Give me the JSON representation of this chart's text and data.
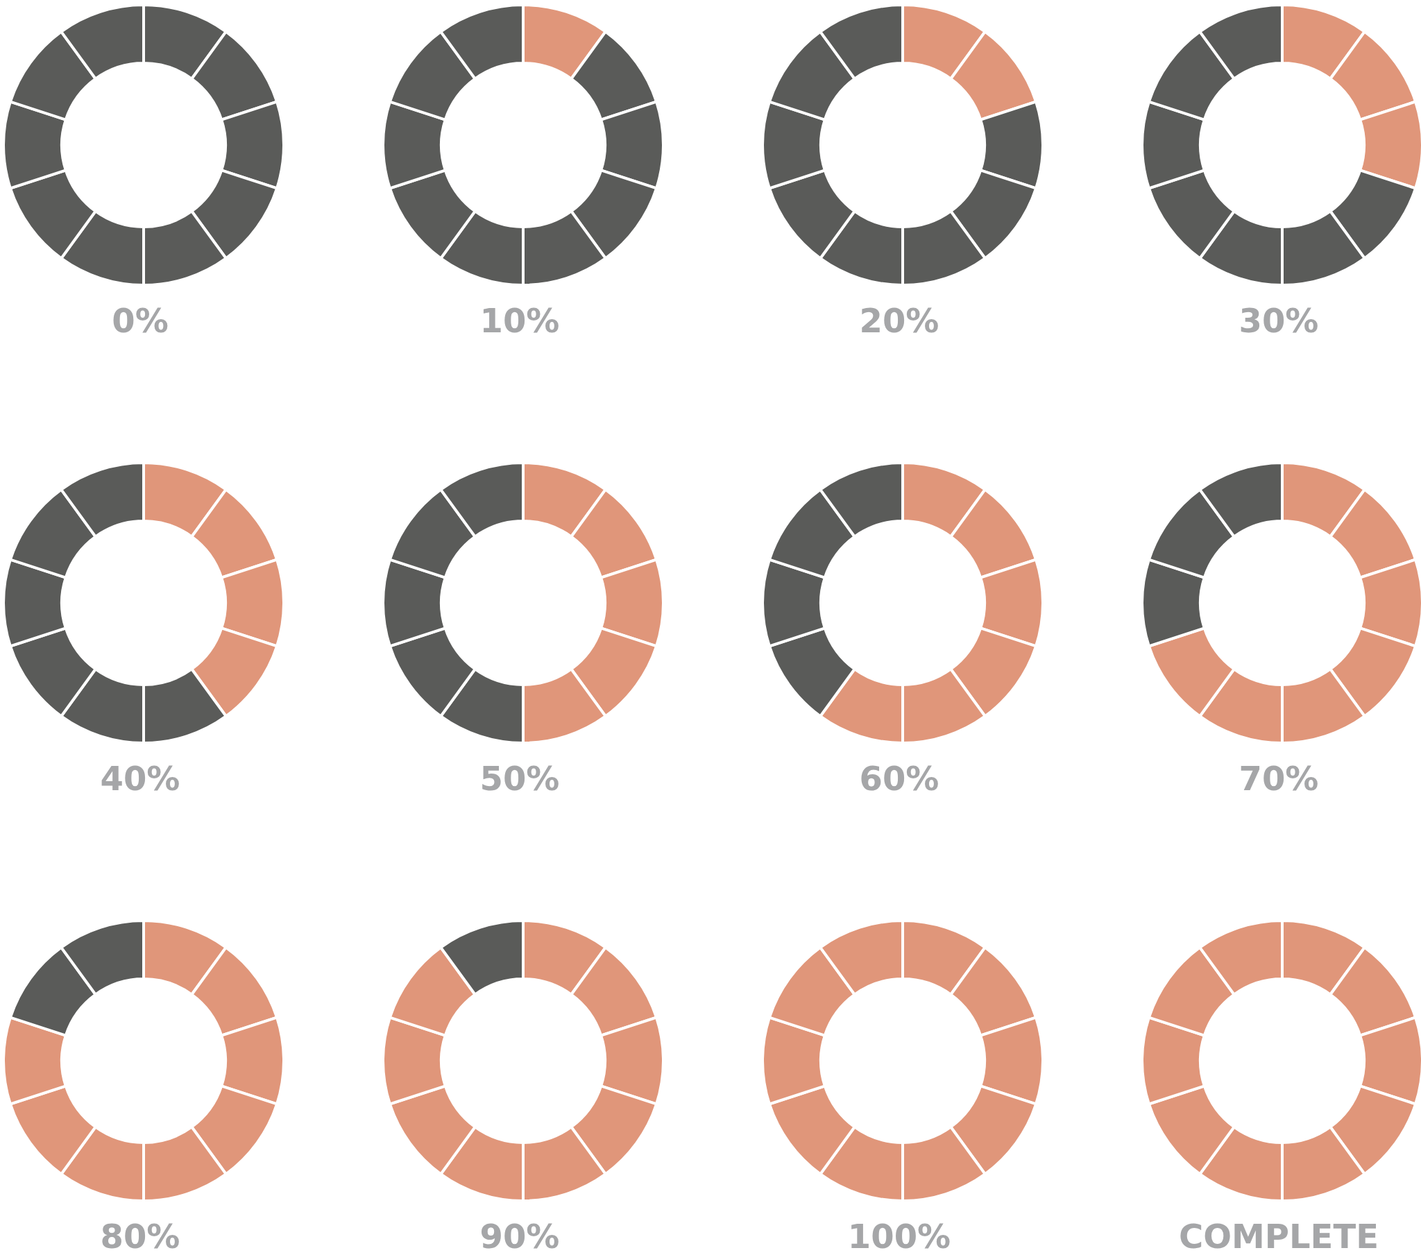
{
  "chart_data": [
    {
      "type": "donut",
      "title": "0%",
      "categories": [
        null,
        null,
        null,
        null,
        null,
        null,
        null,
        null,
        null,
        null
      ],
      "values": [
        10,
        10,
        10,
        10,
        10,
        10,
        10,
        10,
        10,
        10
      ],
      "colors": [
        "#5a5b59",
        "#5a5b59",
        "#5a5b59",
        "#5a5b59",
        "#5a5b59",
        "#5a5b59",
        "#5a5b59",
        "#5a5b59",
        "#5a5b59",
        "#5a5b59"
      ]
    },
    {
      "type": "donut",
      "title": "10%",
      "categories": [
        null,
        null,
        null,
        null,
        null,
        null,
        null,
        null,
        null,
        null
      ],
      "values": [
        10,
        10,
        10,
        10,
        10,
        10,
        10,
        10,
        10,
        10
      ],
      "colors": [
        "#e0967a",
        "#5a5b59",
        "#5a5b59",
        "#5a5b59",
        "#5a5b59",
        "#5a5b59",
        "#5a5b59",
        "#5a5b59",
        "#5a5b59",
        "#5a5b59"
      ]
    },
    {
      "type": "donut",
      "title": "20%",
      "categories": [
        null,
        null,
        null,
        null,
        null,
        null,
        null,
        null,
        null,
        null
      ],
      "values": [
        10,
        10,
        10,
        10,
        10,
        10,
        10,
        10,
        10,
        10
      ],
      "colors": [
        "#e0967a",
        "#e0967a",
        "#5a5b59",
        "#5a5b59",
        "#5a5b59",
        "#5a5b59",
        "#5a5b59",
        "#5a5b59",
        "#5a5b59",
        "#5a5b59"
      ]
    },
    {
      "type": "donut",
      "title": "30%",
      "categories": [
        null,
        null,
        null,
        null,
        null,
        null,
        null,
        null,
        null,
        null
      ],
      "values": [
        10,
        10,
        10,
        10,
        10,
        10,
        10,
        10,
        10,
        10
      ],
      "colors": [
        "#e0967a",
        "#e0967a",
        "#e0967a",
        "#5a5b59",
        "#5a5b59",
        "#5a5b59",
        "#5a5b59",
        "#5a5b59",
        "#5a5b59",
        "#5a5b59"
      ]
    },
    {
      "type": "donut",
      "title": "40%",
      "categories": [
        null,
        null,
        null,
        null,
        null,
        null,
        null,
        null,
        null,
        null
      ],
      "values": [
        10,
        10,
        10,
        10,
        10,
        10,
        10,
        10,
        10,
        10
      ],
      "colors": [
        "#e0967a",
        "#e0967a",
        "#e0967a",
        "#e0967a",
        "#5a5b59",
        "#5a5b59",
        "#5a5b59",
        "#5a5b59",
        "#5a5b59",
        "#5a5b59"
      ]
    },
    {
      "type": "donut",
      "title": "50%",
      "categories": [
        null,
        null,
        null,
        null,
        null,
        null,
        null,
        null,
        null,
        null
      ],
      "values": [
        10,
        10,
        10,
        10,
        10,
        10,
        10,
        10,
        10,
        10
      ],
      "colors": [
        "#e0967a",
        "#e0967a",
        "#e0967a",
        "#e0967a",
        "#e0967a",
        "#5a5b59",
        "#5a5b59",
        "#5a5b59",
        "#5a5b59",
        "#5a5b59"
      ]
    },
    {
      "type": "donut",
      "title": "60%",
      "categories": [
        null,
        null,
        null,
        null,
        null,
        null,
        null,
        null,
        null,
        null
      ],
      "values": [
        10,
        10,
        10,
        10,
        10,
        10,
        10,
        10,
        10,
        10
      ],
      "colors": [
        "#e0967a",
        "#e0967a",
        "#e0967a",
        "#e0967a",
        "#e0967a",
        "#e0967a",
        "#5a5b59",
        "#5a5b59",
        "#5a5b59",
        "#5a5b59"
      ]
    },
    {
      "type": "donut",
      "title": "70%",
      "categories": [
        null,
        null,
        null,
        null,
        null,
        null,
        null,
        null,
        null,
        null
      ],
      "values": [
        10,
        10,
        10,
        10,
        10,
        10,
        10,
        10,
        10,
        10
      ],
      "colors": [
        "#e0967a",
        "#e0967a",
        "#e0967a",
        "#e0967a",
        "#e0967a",
        "#e0967a",
        "#e0967a",
        "#5a5b59",
        "#5a5b59",
        "#5a5b59"
      ]
    },
    {
      "type": "donut",
      "title": "80%",
      "categories": [
        null,
        null,
        null,
        null,
        null,
        null,
        null,
        null,
        null,
        null
      ],
      "values": [
        10,
        10,
        10,
        10,
        10,
        10,
        10,
        10,
        10,
        10
      ],
      "colors": [
        "#e0967a",
        "#e0967a",
        "#e0967a",
        "#e0967a",
        "#e0967a",
        "#e0967a",
        "#e0967a",
        "#e0967a",
        "#5a5b59",
        "#5a5b59"
      ]
    },
    {
      "type": "donut",
      "title": "90%",
      "categories": [
        null,
        null,
        null,
        null,
        null,
        null,
        null,
        null,
        null,
        null
      ],
      "values": [
        10,
        10,
        10,
        10,
        10,
        10,
        10,
        10,
        10,
        10
      ],
      "colors": [
        "#e0967a",
        "#e0967a",
        "#e0967a",
        "#e0967a",
        "#e0967a",
        "#e0967a",
        "#e0967a",
        "#e0967a",
        "#e0967a",
        "#5a5b59"
      ]
    },
    {
      "type": "donut",
      "title": "100%",
      "categories": [
        null,
        null,
        null,
        null,
        null,
        null,
        null,
        null,
        null,
        null
      ],
      "values": [
        10,
        10,
        10,
        10,
        10,
        10,
        10,
        10,
        10,
        10
      ],
      "colors": [
        "#e0967a",
        "#e0967a",
        "#e0967a",
        "#e0967a",
        "#e0967a",
        "#e0967a",
        "#e0967a",
        "#e0967a",
        "#e0967a",
        "#e0967a"
      ]
    },
    {
      "type": "donut",
      "title": "COMPLETE",
      "categories": [
        null,
        null,
        null,
        null,
        null,
        null,
        null,
        null,
        null,
        null
      ],
      "values": [
        10,
        10,
        10,
        10,
        10,
        10,
        10,
        10,
        10,
        10
      ],
      "colors": [
        "#e0967a",
        "#e0967a",
        "#e0967a",
        "#e0967a",
        "#e0967a",
        "#e0967a",
        "#e0967a",
        "#e0967a",
        "#e0967a",
        "#e0967a"
      ]
    }
  ]
}
